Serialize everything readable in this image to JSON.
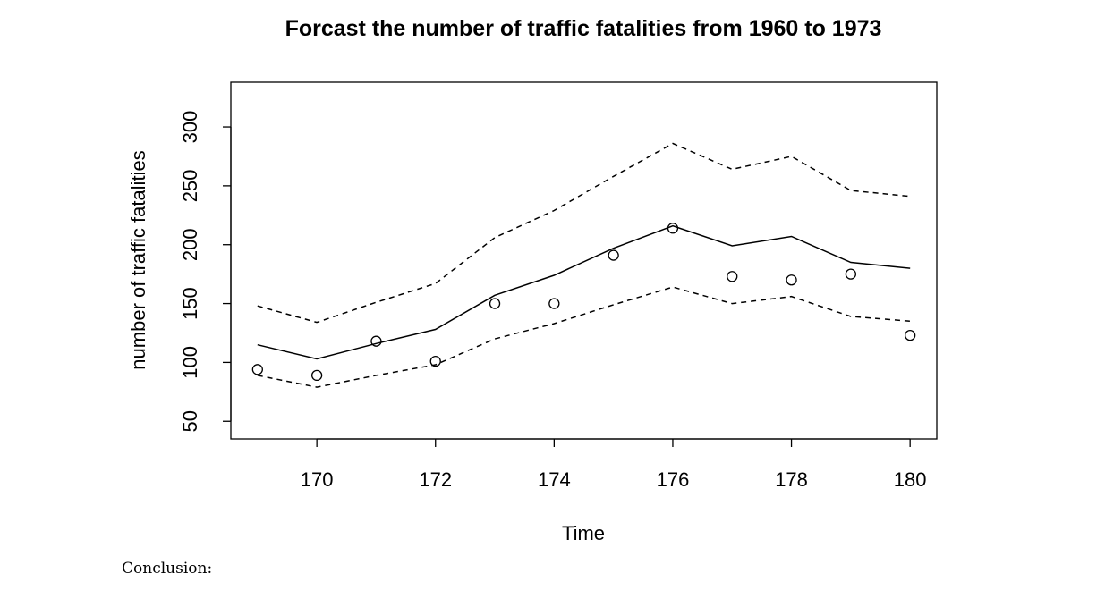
{
  "chart_data": {
    "type": "line",
    "title": "Forcast the number of traffic fatalities from 1960 to 1973",
    "xlabel": "Time",
    "ylabel": "number of traffic fatalities",
    "xlim": [
      168.55,
      180.45
    ],
    "ylim": [
      35,
      338
    ],
    "x_ticks": [
      170,
      172,
      174,
      176,
      178,
      180
    ],
    "y_ticks": [
      50,
      100,
      150,
      200,
      250,
      300
    ],
    "grid": false,
    "legend": "none",
    "x": [
      169,
      170,
      171,
      172,
      173,
      174,
      175,
      176,
      177,
      178,
      179,
      180
    ],
    "series": [
      {
        "role": "forecast",
        "style": "solid",
        "values": [
          115,
          103,
          116,
          128,
          157,
          174,
          197,
          216,
          199,
          207,
          185,
          180
        ]
      },
      {
        "role": "upper",
        "style": "dashed",
        "values": [
          148,
          134,
          151,
          167,
          206,
          229,
          258,
          286,
          264,
          275,
          246,
          241
        ]
      },
      {
        "role": "lower",
        "style": "dashed",
        "values": [
          89,
          79,
          89,
          98,
          120,
          133,
          149,
          164,
          150,
          156,
          139,
          135
        ]
      },
      {
        "role": "observed",
        "style": "points",
        "values": [
          94,
          89,
          118,
          101,
          150,
          150,
          191,
          214,
          173,
          170,
          175,
          123
        ]
      }
    ]
  },
  "conclusion_label": "Conclusion:"
}
